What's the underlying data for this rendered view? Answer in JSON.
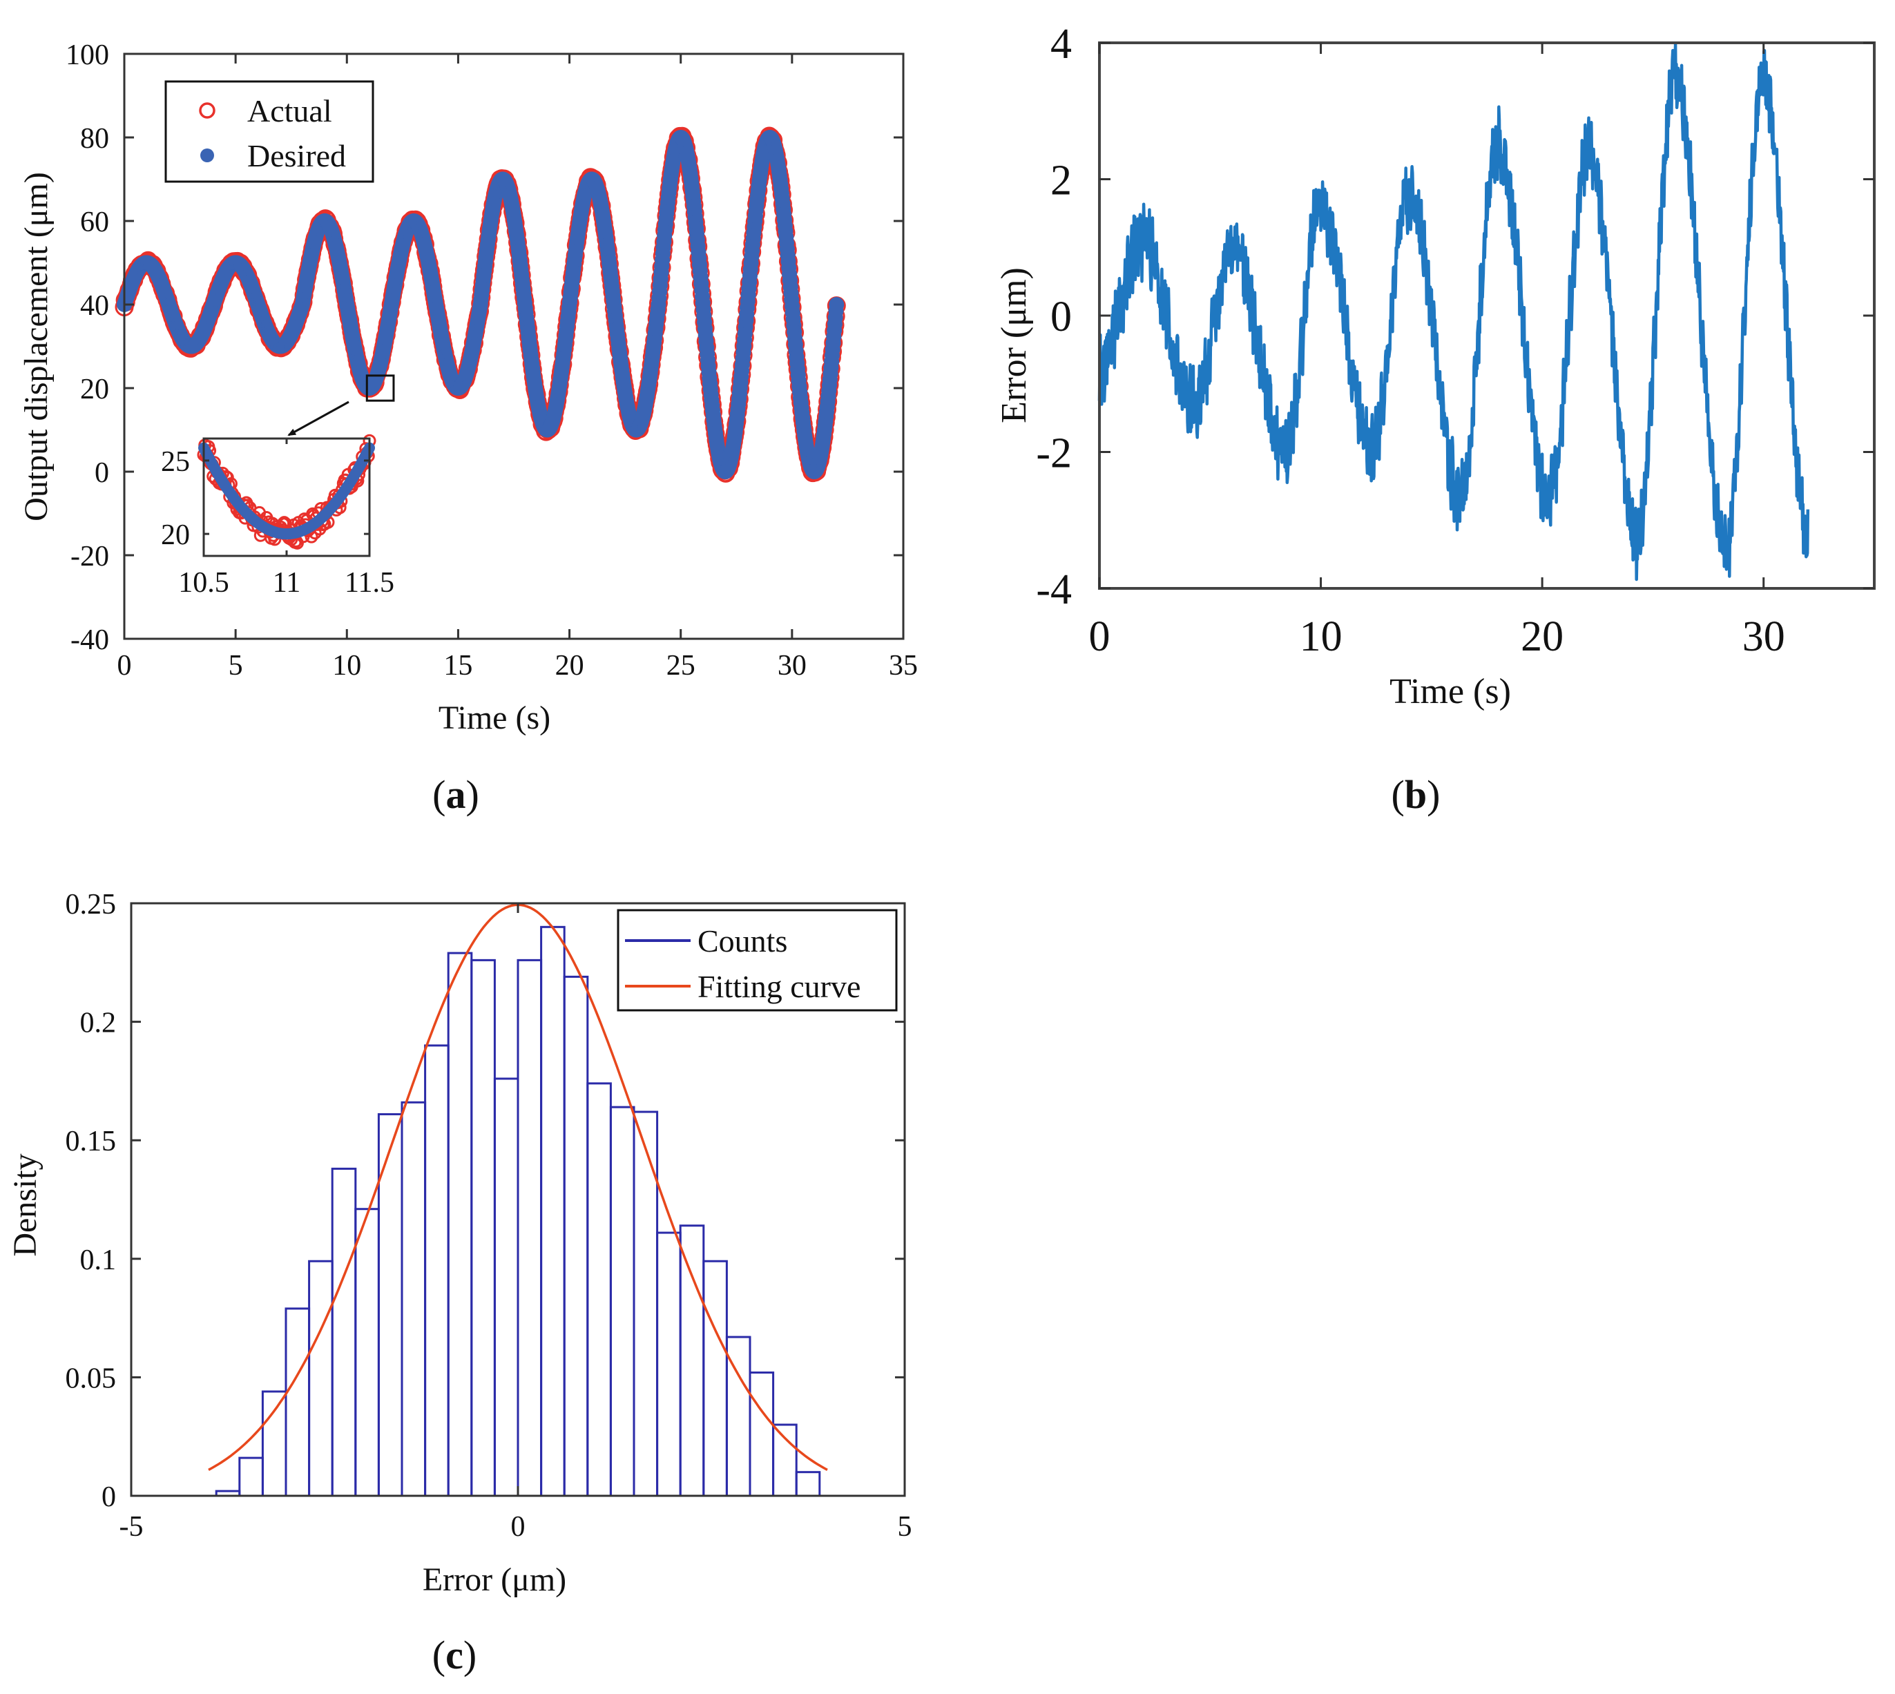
{
  "colors": {
    "actual": "#e8312b",
    "desired": "#3a64b4",
    "error": "#1f78c1",
    "counts": "#2b2ba8",
    "fit": "#e8481c",
    "axis": "#333333"
  },
  "chart_data": [
    {
      "id": "a",
      "type": "scatter",
      "caption_letter": "a",
      "xlabel": "Time (s)",
      "ylabel": "Output displacement (μm)",
      "xlim": [
        0,
        35
      ],
      "ylim": [
        -40,
        100
      ],
      "xticks": [
        "0",
        "5",
        "10",
        "15",
        "20",
        "25",
        "30",
        "35"
      ],
      "yticks": [
        "-40",
        "-20",
        "0",
        "20",
        "40",
        "60",
        "80",
        "100"
      ],
      "legend": [
        "Actual",
        "Desired"
      ],
      "legend_position": "top-left",
      "t_end": 32,
      "series": [
        {
          "name": "Desired",
          "description": "sinusoid, period 4 s, offset 40 μm, amplitude grows in steps",
          "segments": [
            {
              "t_start": 0,
              "t_end": 8,
              "amplitude": 10
            },
            {
              "t_start": 8,
              "t_end": 16,
              "amplitude": 20
            },
            {
              "t_start": 16,
              "t_end": 24,
              "amplitude": 30
            },
            {
              "t_start": 24,
              "t_end": 32,
              "amplitude": 40
            }
          ],
          "offset": 40,
          "period": 4
        },
        {
          "name": "Actual",
          "description": "measured output, overlaps desired"
        }
      ],
      "inset": {
        "xlim": [
          10.5,
          11.5
        ],
        "ylim": [
          18.5,
          26.5
        ],
        "xticks": [
          "10.5",
          "11",
          "11.5"
        ],
        "yticks": [
          "20",
          "25"
        ],
        "zoom_box_x": [
          10.9,
          12.1
        ],
        "zoom_box_y": [
          17,
          23
        ]
      }
    },
    {
      "id": "b",
      "type": "line",
      "caption_letter": "b",
      "xlabel": "Time (s)",
      "ylabel": "Error (μm)",
      "xlim": [
        0,
        35
      ],
      "ylim": [
        -4,
        4
      ],
      "xticks": [
        "0",
        "10",
        "20",
        "30"
      ],
      "yticks": [
        "-4",
        "-2",
        "0",
        "2",
        "4"
      ],
      "series": [
        {
          "name": "Error",
          "description": "noisy sinusoid with growing amplitude, ~4 s period",
          "points": [
            [
              0,
              -0.8
            ],
            [
              1.9,
              1.1
            ],
            [
              4.3,
              -1.3
            ],
            [
              6.0,
              1.0
            ],
            [
              8.4,
              -2.0
            ],
            [
              10.0,
              1.6
            ],
            [
              12.3,
              -2.0
            ],
            [
              14.0,
              1.8
            ],
            [
              16.3,
              -2.6
            ],
            [
              18.0,
              2.5
            ],
            [
              20.3,
              -2.7
            ],
            [
              22.1,
              2.4
            ],
            [
              24.3,
              -3.3
            ],
            [
              26.0,
              3.5
            ],
            [
              28.3,
              -3.4
            ],
            [
              30.0,
              3.5
            ],
            [
              32.0,
              -3.1
            ]
          ]
        }
      ]
    },
    {
      "id": "c",
      "type": "bar",
      "caption_letter": "c",
      "xlabel": "Error (μm)",
      "ylabel": "Density",
      "xlim": [
        -5,
        5
      ],
      "ylim": [
        0,
        0.25
      ],
      "xticks": [
        "-5",
        "0",
        "5"
      ],
      "yticks": [
        "0",
        "0.05",
        "0.1",
        "0.15",
        "0.2",
        "0.25"
      ],
      "legend": [
        "Counts",
        "Fitting curve"
      ],
      "legend_position": "top-right",
      "bin_start": -3.9,
      "bin_width": 0.3,
      "values": [
        0.002,
        0.016,
        0.044,
        0.079,
        0.099,
        0.138,
        0.121,
        0.161,
        0.166,
        0.19,
        0.229,
        0.226,
        0.176,
        0.226,
        0.24,
        0.219,
        0.174,
        0.164,
        0.162,
        0.111,
        0.114,
        0.099,
        0.067,
        0.052,
        0.03,
        0.01
      ],
      "fit": {
        "type": "normal",
        "mu": 0.0,
        "sigma": 1.6,
        "x_range": [
          -4.0,
          4.0
        ]
      }
    }
  ]
}
